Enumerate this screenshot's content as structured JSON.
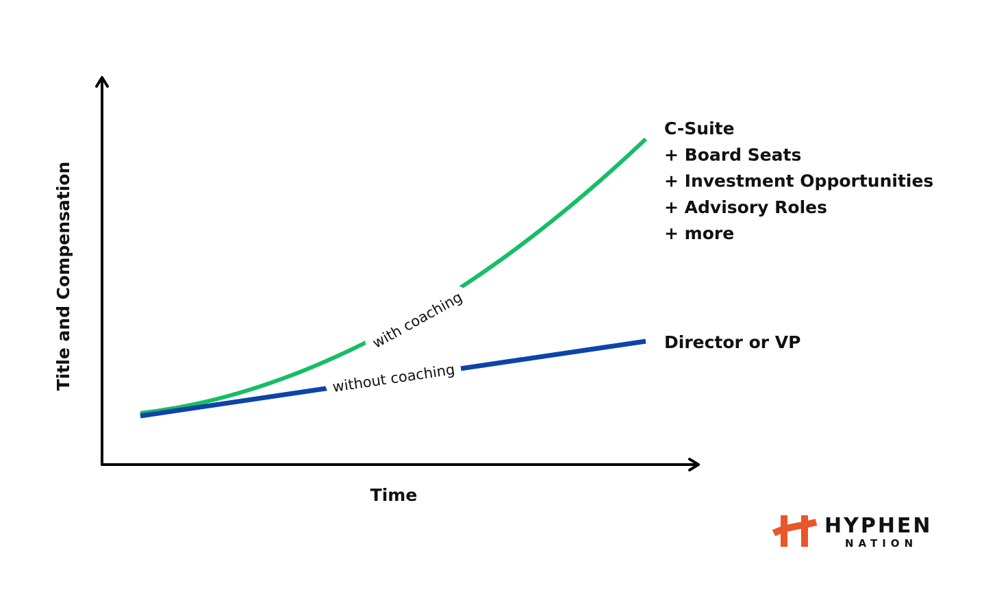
{
  "axes": {
    "y_label": "Title and Compensation",
    "x_label": "Time"
  },
  "curves": {
    "with_label": "with coaching",
    "without_label": "without coaching"
  },
  "outcomes": {
    "with": [
      "C-Suite",
      "+ Board Seats",
      "+ Investment Opportunities",
      "+ Advisory Roles",
      "+ more"
    ],
    "without": "Director or VP"
  },
  "logo": {
    "name": "HYPHEN",
    "sub": "NATION"
  }
}
